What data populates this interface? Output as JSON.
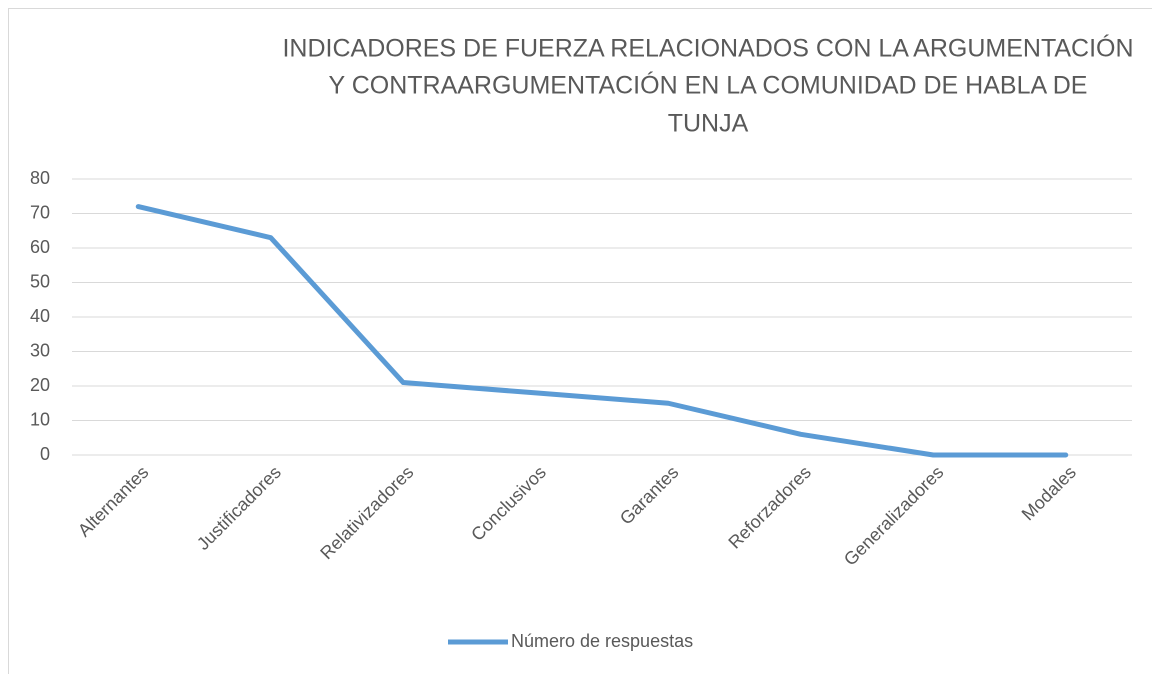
{
  "chart_data": {
    "type": "line",
    "title": [
      "INDICADORES DE FUERZA RELACIONADOS CON LA ARGUMENTACIÓN",
      "Y CONTRAARGUMENTACIÓN EN LA COMUNIDAD DE HABLA DE",
      "TUNJA"
    ],
    "categories": [
      "Alternantes",
      "Justificadores",
      "Relativizadores",
      "Conclusivos",
      "Garantes",
      "Reforzadores",
      "Generalizadores",
      "Modales"
    ],
    "series": [
      {
        "name": "Número de respuestas",
        "color": "#5b9bd5",
        "values": [
          72,
          63,
          21,
          18,
          15,
          6,
          0,
          0
        ]
      }
    ],
    "ylim": [
      0,
      80
    ],
    "yticks": [
      0,
      10,
      20,
      30,
      40,
      50,
      60,
      70,
      80
    ],
    "grid": true,
    "legend": "bottom"
  }
}
